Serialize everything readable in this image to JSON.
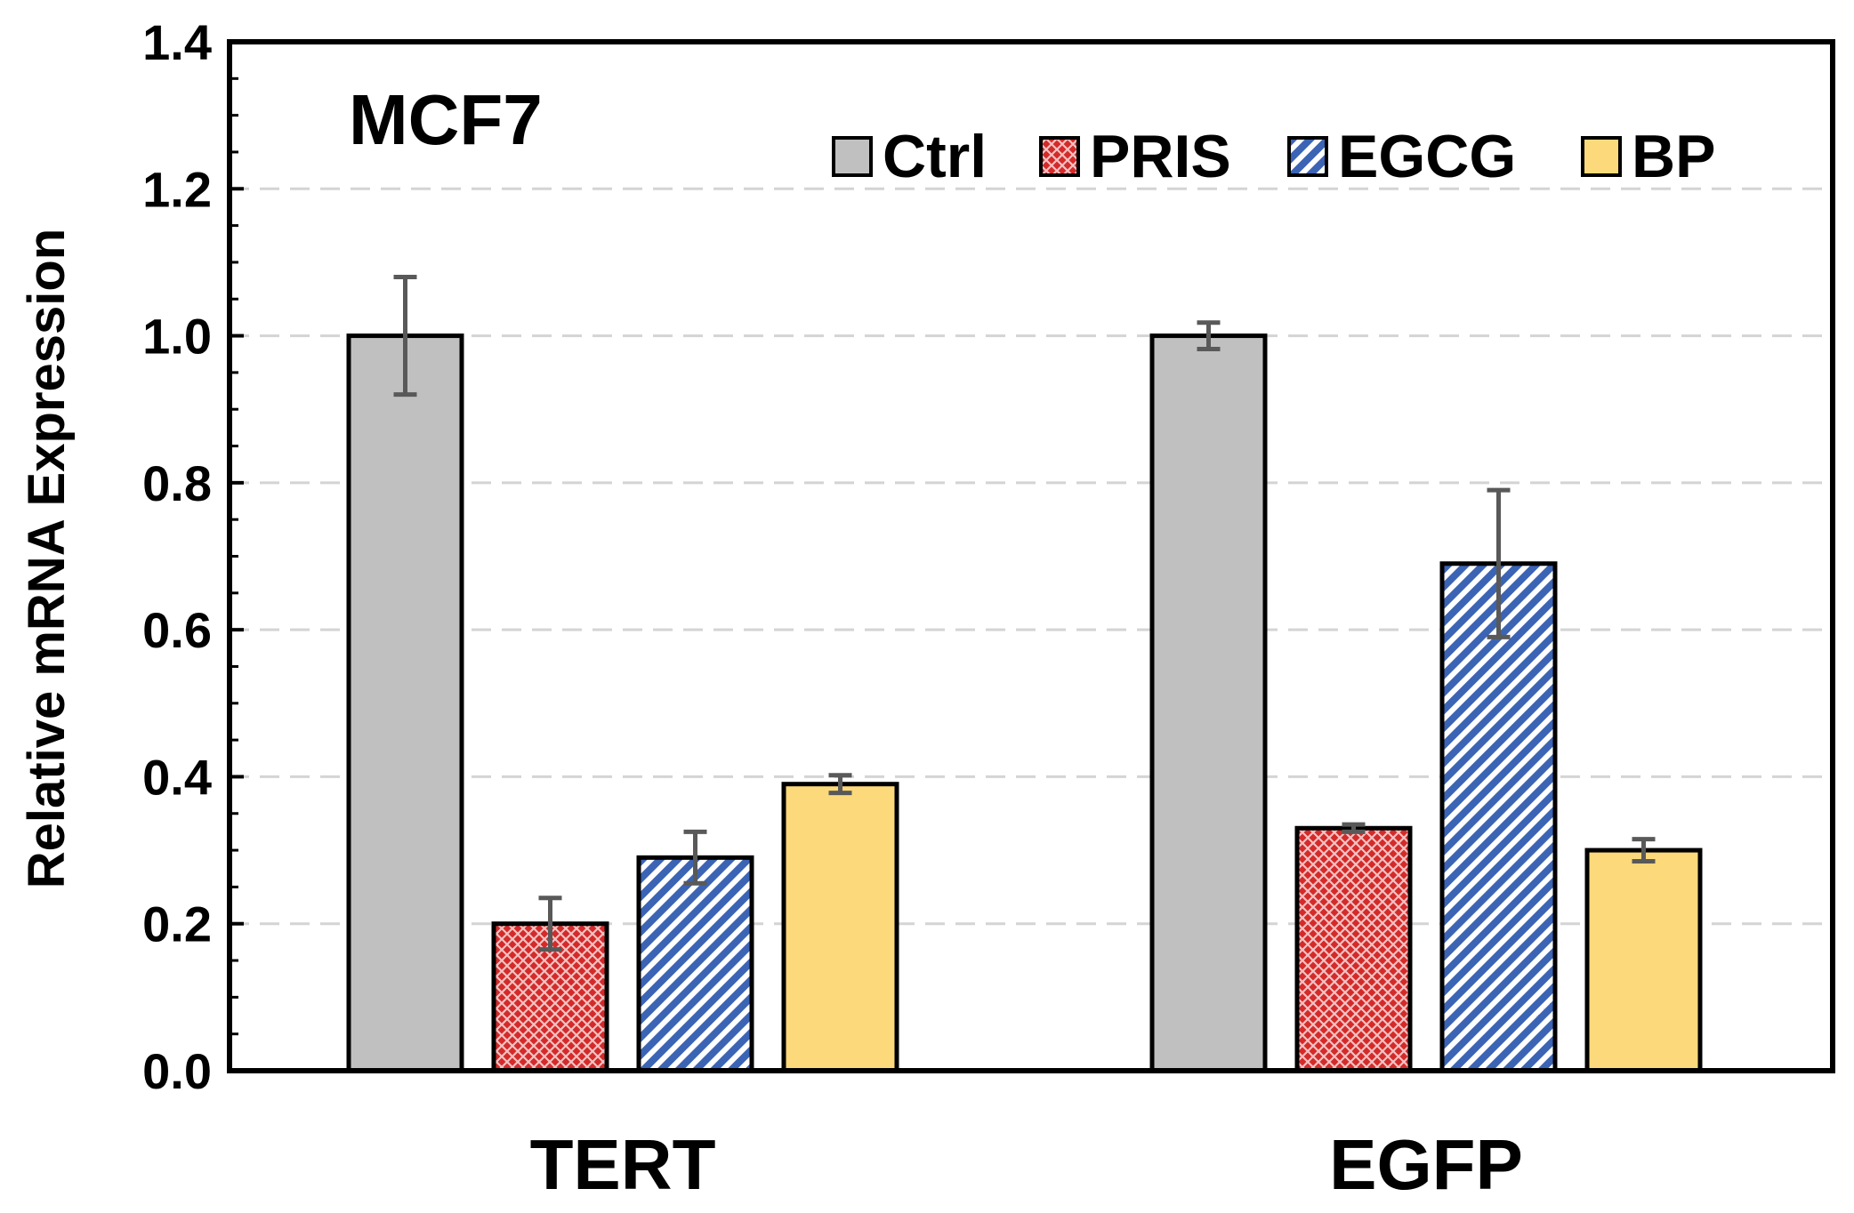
{
  "chart_data": {
    "type": "bar",
    "title": "MCF7",
    "xlabel": "",
    "ylabel": "Relative mRNA Expression",
    "ylim": [
      0,
      1.4
    ],
    "yticks": [
      "0.0",
      "0.2",
      "0.4",
      "0.6",
      "0.8",
      "1.0",
      "1.2",
      "1.4"
    ],
    "categories": [
      "TERT",
      "EGFP"
    ],
    "grid": "horizontal dashed",
    "legend_position": "top-right",
    "series": [
      {
        "name": "Ctrl",
        "color": "#c0c0c0",
        "pattern": "solid",
        "values": [
          1.0,
          1.0
        ],
        "errors": [
          0.08,
          0.018
        ]
      },
      {
        "name": "PRIS",
        "color": "#d42a2a",
        "pattern": "crosshatch",
        "values": [
          0.2,
          0.33
        ],
        "errors": [
          0.035,
          0.005
        ]
      },
      {
        "name": "EGCG",
        "color": "#3c64b4",
        "pattern": "diagonal",
        "values": [
          0.29,
          0.69
        ],
        "errors": [
          0.035,
          0.1
        ]
      },
      {
        "name": "BP",
        "color": "#fcd97a",
        "pattern": "solid",
        "values": [
          0.39,
          0.3
        ],
        "errors": [
          0.012,
          0.015
        ]
      }
    ]
  }
}
